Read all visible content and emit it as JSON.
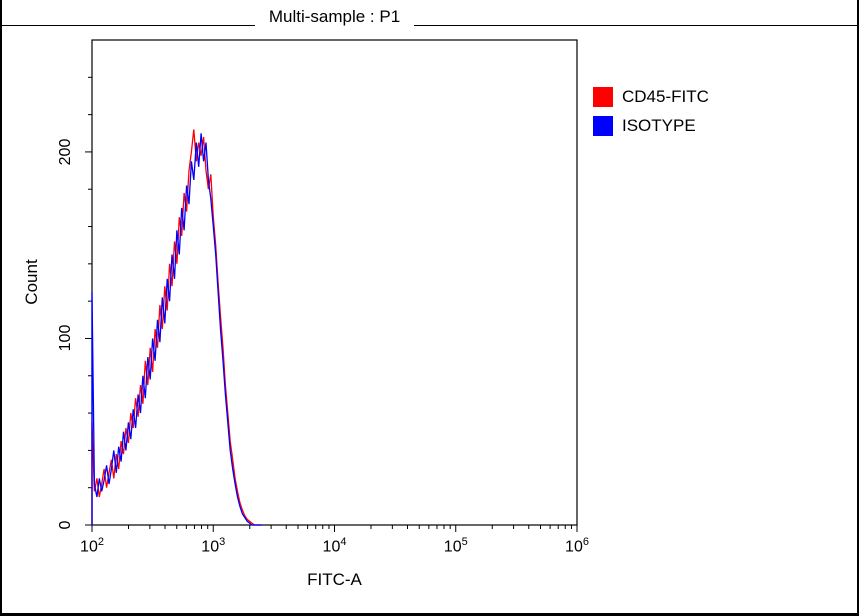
{
  "title": "Multi-sample : P1",
  "axes": {
    "x_label": "FITC-A",
    "y_label": "Count",
    "x_tick_exponents": [
      2,
      3,
      4,
      5,
      6
    ],
    "y_ticks": [
      0,
      100,
      200
    ]
  },
  "legend": [
    {
      "label": "CD45-FITC",
      "color": "#ff0000"
    },
    {
      "label": "ISOTYPE",
      "color": "#0000ff"
    }
  ],
  "chart_data": {
    "type": "line",
    "subtype": "flow-cytometry-histogram",
    "title": "Multi-sample : P1",
    "xlabel": "FITC-A",
    "ylabel": "Count",
    "x_scale": "log10",
    "xlim_log10": [
      2,
      6
    ],
    "ylim": [
      0,
      260
    ],
    "grid": false,
    "legend_position": "right-outside",
    "x_log10": [
      2.0,
      2.02,
      2.04,
      2.06,
      2.08,
      2.1,
      2.12,
      2.14,
      2.16,
      2.18,
      2.2,
      2.22,
      2.24,
      2.26,
      2.28,
      2.3,
      2.32,
      2.34,
      2.36,
      2.38,
      2.4,
      2.42,
      2.44,
      2.46,
      2.48,
      2.5,
      2.52,
      2.54,
      2.56,
      2.58,
      2.6,
      2.62,
      2.64,
      2.66,
      2.68,
      2.7,
      2.72,
      2.74,
      2.76,
      2.78,
      2.8,
      2.82,
      2.84,
      2.86,
      2.88,
      2.9,
      2.92,
      2.94,
      2.96,
      2.98,
      3.0,
      3.02,
      3.04,
      3.06,
      3.08,
      3.1,
      3.12,
      3.14,
      3.16,
      3.18,
      3.2,
      3.22,
      3.24,
      3.26,
      3.28,
      3.3,
      3.32,
      3.34,
      3.36,
      3.38,
      3.4
    ],
    "series": [
      {
        "name": "CD45-FITC",
        "color": "#ff0000",
        "values": [
          55,
          18,
          25,
          15,
          22,
          30,
          20,
          28,
          35,
          25,
          38,
          30,
          45,
          38,
          52,
          44,
          60,
          52,
          68,
          58,
          75,
          65,
          88,
          75,
          95,
          82,
          105,
          95,
          118,
          105,
          128,
          115,
          140,
          128,
          152,
          140,
          165,
          155,
          178,
          168,
          190,
          200,
          212,
          195,
          205,
          198,
          208,
          190,
          180,
          188,
          165,
          150,
          130,
          112,
          95,
          75,
          60,
          45,
          35,
          25,
          18,
          12,
          8,
          5,
          3,
          2,
          1,
          0,
          0,
          0,
          0
        ]
      },
      {
        "name": "ISOTYPE",
        "color": "#0000ff",
        "values": [
          125,
          22,
          15,
          25,
          18,
          24,
          32,
          22,
          30,
          40,
          28,
          42,
          34,
          50,
          40,
          55,
          46,
          62,
          52,
          70,
          60,
          80,
          68,
          90,
          78,
          100,
          88,
          110,
          98,
          122,
          108,
          132,
          120,
          145,
          132,
          158,
          145,
          170,
          158,
          182,
          172,
          195,
          185,
          205,
          192,
          210,
          195,
          205,
          185,
          175,
          160,
          145,
          125,
          105,
          88,
          70,
          55,
          40,
          30,
          22,
          15,
          10,
          6,
          4,
          2,
          1,
          0,
          0,
          0,
          0,
          0
        ]
      }
    ]
  }
}
